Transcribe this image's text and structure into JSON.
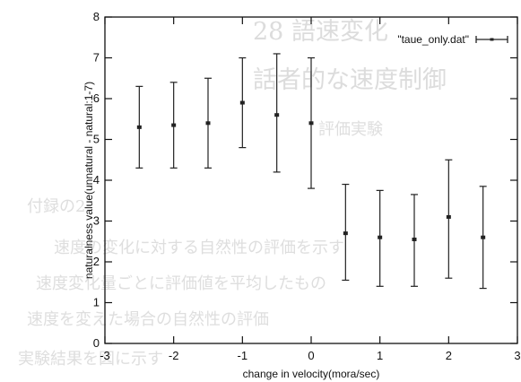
{
  "chart_data": {
    "type": "scatter",
    "style": "errorbars",
    "title": "",
    "xlabel": "change in velocity(mora/sec)",
    "ylabel": "naturalness value(unnatural - natural:1-7)",
    "xlim": [
      -3,
      3
    ],
    "ylim": [
      0,
      8
    ],
    "x_ticks": [
      "-3",
      "-2",
      "-1",
      "0",
      "1",
      "2",
      "3"
    ],
    "y_ticks": [
      "0",
      "1",
      "2",
      "3",
      "4",
      "5",
      "6",
      "7",
      "8"
    ],
    "grid": false,
    "legend_position": "top-right",
    "series": [
      {
        "name": "\"taue_only.dat\"",
        "color": "#222222",
        "points": [
          {
            "x": -2.5,
            "y": 5.3,
            "low": 4.3,
            "high": 6.3
          },
          {
            "x": -2.0,
            "y": 5.35,
            "low": 4.3,
            "high": 6.4
          },
          {
            "x": -1.5,
            "y": 5.4,
            "low": 4.3,
            "high": 6.5
          },
          {
            "x": -1.0,
            "y": 5.9,
            "low": 4.8,
            "high": 7.0
          },
          {
            "x": -0.5,
            "y": 5.6,
            "low": 4.2,
            "high": 7.1
          },
          {
            "x": 0.0,
            "y": 5.4,
            "low": 3.8,
            "high": 7.0
          },
          {
            "x": 0.5,
            "y": 2.7,
            "low": 1.55,
            "high": 3.9
          },
          {
            "x": 1.0,
            "y": 2.6,
            "low": 1.4,
            "high": 3.75
          },
          {
            "x": 1.5,
            "y": 2.55,
            "low": 1.4,
            "high": 3.65
          },
          {
            "x": 2.0,
            "y": 3.1,
            "low": 1.6,
            "high": 4.5
          },
          {
            "x": 2.5,
            "y": 2.6,
            "low": 1.35,
            "high": 3.85
          }
        ]
      }
    ]
  },
  "background_text": {
    "line1": "28  語速変化",
    "line2": "話者的な速度制御",
    "line3": "評価実験",
    "line4": "付録の2",
    "line5": "速度の変化に対する自然性の評価を示す",
    "line6": "速度変化量ごとに評価値を平均したもの",
    "line7": "速度を変えた場合の自然性の評価",
    "line8": "実験結果を図に示す"
  }
}
